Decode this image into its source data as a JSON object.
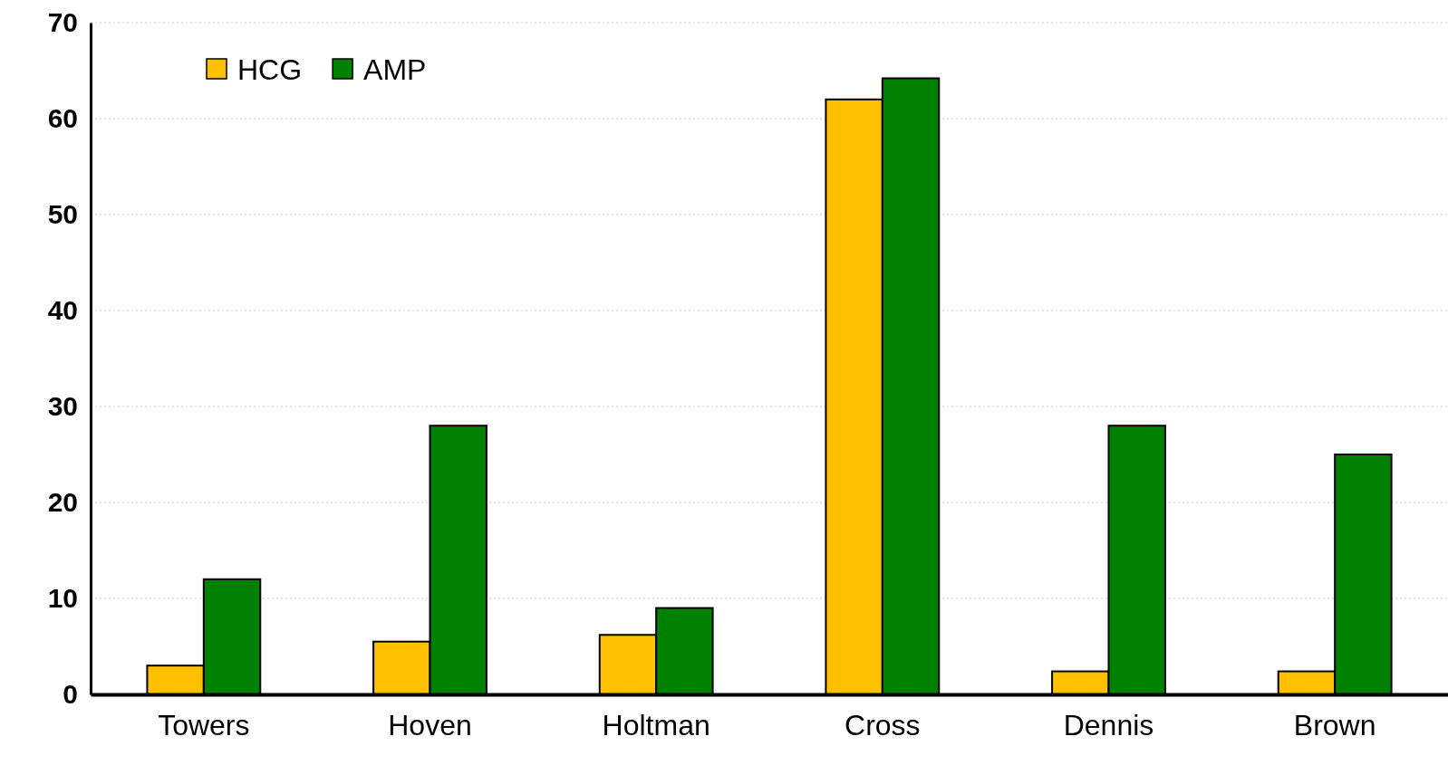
{
  "chart_data": {
    "type": "bar",
    "categories": [
      "Towers",
      "Hoven",
      "Holtman",
      "Cross",
      "Dennis",
      "Brown"
    ],
    "series": [
      {
        "name": "HCG",
        "color": "#ffc000",
        "values": [
          3,
          5.5,
          6.2,
          62,
          2.4,
          2.4
        ]
      },
      {
        "name": "AMP",
        "color": "#008000",
        "values": [
          12,
          28,
          9,
          64.2,
          28,
          25
        ]
      }
    ],
    "ylim": [
      0,
      70
    ],
    "yticks": [
      0,
      10,
      20,
      30,
      40,
      50,
      60,
      70
    ],
    "grid": "y",
    "legend": "top left"
  }
}
